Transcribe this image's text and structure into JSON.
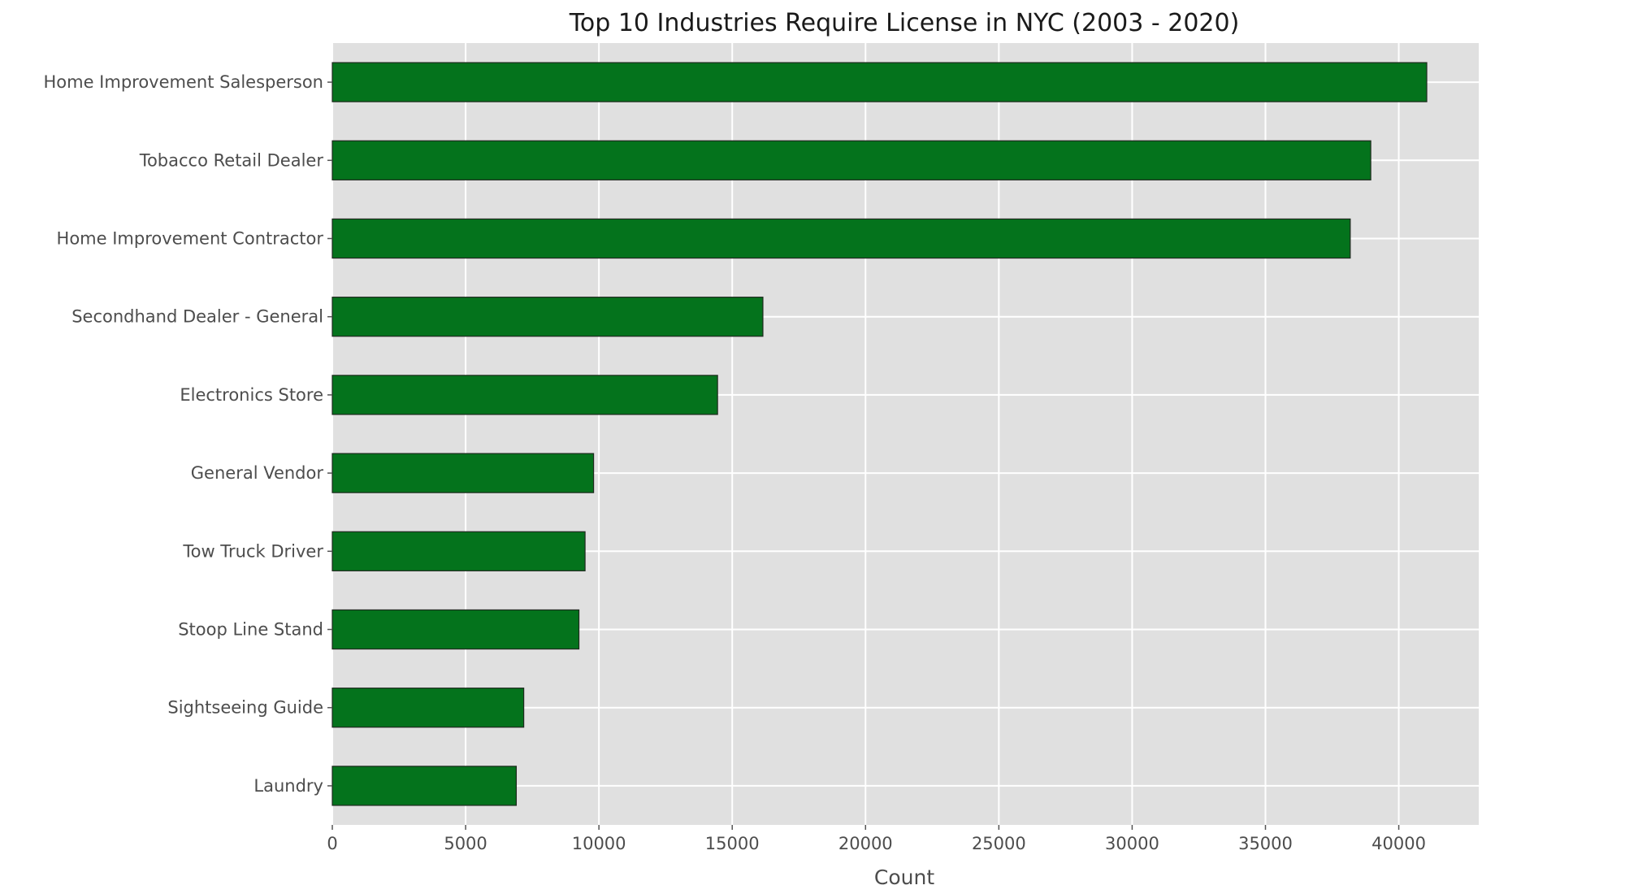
{
  "chart_data": {
    "type": "bar",
    "orientation": "horizontal",
    "title": "Top 10 Industries Require License in NYC (2003 - 2020)",
    "xlabel": "Count",
    "ylabel": "",
    "categories": [
      "Home Improvement Salesperson",
      "Tobacco Retail Dealer",
      "Home Improvement Contractor",
      "Secondhand Dealer - General",
      "Electronics Store",
      "General Vendor",
      "Tow Truck Driver",
      "Stoop Line Stand",
      "Sightseeing Guide",
      "Laundry"
    ],
    "values": [
      41050,
      38950,
      38180,
      16150,
      14450,
      9800,
      9480,
      9250,
      7180,
      6900
    ],
    "xlim": [
      0,
      43000
    ],
    "x_ticks": [
      0,
      5000,
      10000,
      15000,
      20000,
      25000,
      30000,
      35000,
      40000
    ],
    "x_tick_labels": [
      "0",
      "5000",
      "10000",
      "15000",
      "20000",
      "25000",
      "30000",
      "35000",
      "40000"
    ],
    "grid": true,
    "legend": "none",
    "colors": {
      "bar_fill": "#04731c",
      "bar_edge": "#1f2a1f",
      "plot_background": "#e0e0e0",
      "grid": "#ffffff"
    }
  }
}
